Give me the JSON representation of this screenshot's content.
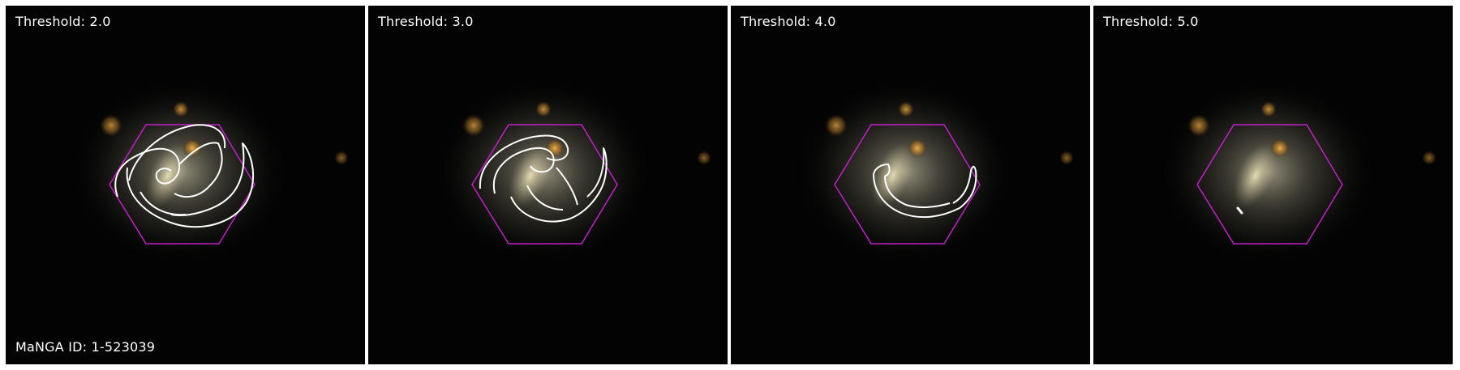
{
  "colors": {
    "background": "#030303",
    "hexagon": "#c020c8",
    "contour": "#ffffff",
    "galaxy_core": "#e9e2b8",
    "star": "#e6a238"
  },
  "panels": [
    {
      "threshold_label": "Threshold: 2.0"
    },
    {
      "threshold_label": "Threshold: 3.0"
    },
    {
      "threshold_label": "Threshold: 4.0"
    },
    {
      "threshold_label": "Threshold: 5.0"
    }
  ],
  "id_label": "MaNGA ID: 1-523039"
}
